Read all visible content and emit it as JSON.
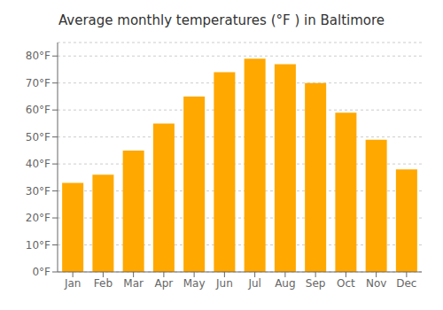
{
  "chart_data": {
    "type": "bar",
    "title": "Average monthly temperatures (°F ) in Baltimore",
    "categories": [
      "Jan",
      "Feb",
      "Mar",
      "Apr",
      "May",
      "Jun",
      "Jul",
      "Aug",
      "Sep",
      "Oct",
      "Nov",
      "Dec"
    ],
    "values": [
      33,
      36,
      45,
      55,
      65,
      74,
      79,
      77,
      70,
      59,
      49,
      38
    ],
    "color": "#FFA800",
    "ylim": [
      0,
      85
    ],
    "yticks": [
      {
        "value": 0,
        "label": "0°F"
      },
      {
        "value": 10,
        "label": "10°F"
      },
      {
        "value": 20,
        "label": "20°F"
      },
      {
        "value": 30,
        "label": "30°F"
      },
      {
        "value": 40,
        "label": "40°F"
      },
      {
        "value": 50,
        "label": "50°F"
      },
      {
        "value": 60,
        "label": "60°F"
      },
      {
        "value": 70,
        "label": "70°F"
      },
      {
        "value": 80,
        "label": "80°F"
      }
    ],
    "grid": true
  }
}
